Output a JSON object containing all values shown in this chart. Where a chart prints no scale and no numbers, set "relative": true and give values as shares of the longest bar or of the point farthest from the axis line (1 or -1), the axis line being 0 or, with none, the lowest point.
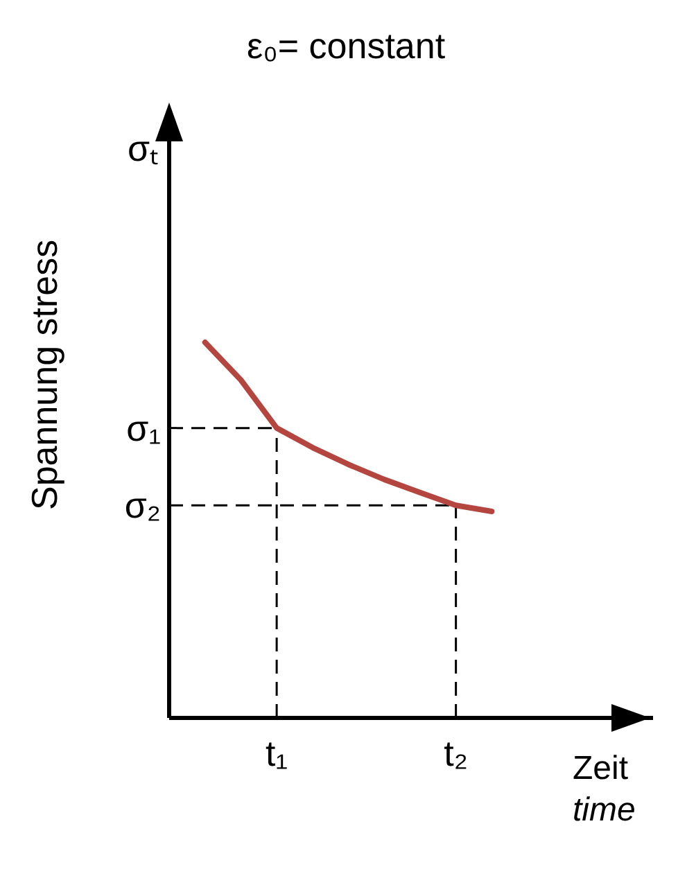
{
  "chart_data": {
    "type": "line",
    "title": "ε₀= constant",
    "xlabel": "Zeit time",
    "ylabel": "Spannung stress",
    "annotations": [
      "σₜ"
    ],
    "relative": true,
    "tick_labels": "x",
    "categories": [
      null,
      null,
      "t₁",
      null,
      null,
      null,
      null,
      "t₂",
      null
    ],
    "grid": false,
    "legend": false,
    "marker": "none",
    "line_style": "solid",
    "series": [
      {
        "color": "#b5453f",
        "values": [
          1.0,
          0.9,
          0.772,
          0.72,
          0.675,
          0.635,
          0.6,
          0.566,
          0.55
        ]
      }
    ],
    "ref_lines": [
      {
        "axis": "y",
        "value": 0.772,
        "label": "σ₁",
        "line_style": "dashed",
        "color": "#000000"
      },
      {
        "axis": "y",
        "value": 0.566,
        "label": "σ₂",
        "line_style": "dashed",
        "color": "#000000"
      },
      {
        "axis": "x",
        "value": "t₁",
        "line_style": "dashed",
        "color": "#000000"
      },
      {
        "axis": "x",
        "value": "t₂",
        "line_style": "dashed",
        "color": "#000000"
      }
    ]
  }
}
